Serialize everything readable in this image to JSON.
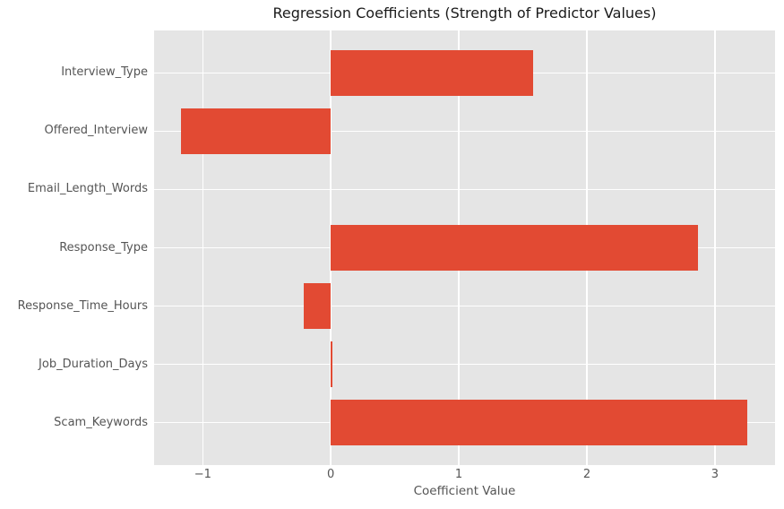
{
  "chart_data": {
    "type": "bar",
    "orientation": "horizontal",
    "title": "Regression Coefficients (Strength of Predictor Values)",
    "xlabel": "Coefficient Value",
    "ylabel": "",
    "categories": [
      "Interview_Type",
      "Offered_Interview",
      "Email_Length_Words",
      "Response_Type",
      "Response_Time_Hours",
      "Job_Duration_Days",
      "Scam_Keywords"
    ],
    "values": [
      1.58,
      -1.17,
      0.0,
      2.87,
      -0.21,
      0.01,
      3.25
    ],
    "xticks": [
      -1,
      0,
      1,
      2,
      3
    ],
    "xtick_labels": [
      "−1",
      "0",
      "1",
      "2",
      "3"
    ],
    "xlim": [
      -1.38,
      3.47
    ],
    "ylim": [
      -0.73,
      6.73
    ],
    "bar_height": 0.78,
    "grid": true,
    "legend": null,
    "style": {
      "bar_color": "#E24A33",
      "plot_background": "#E5E5E5",
      "grid_color": "#FFFFFF",
      "tick_color": "#555555",
      "label_color": "#555555",
      "title_color": "#1a1a1a"
    }
  }
}
